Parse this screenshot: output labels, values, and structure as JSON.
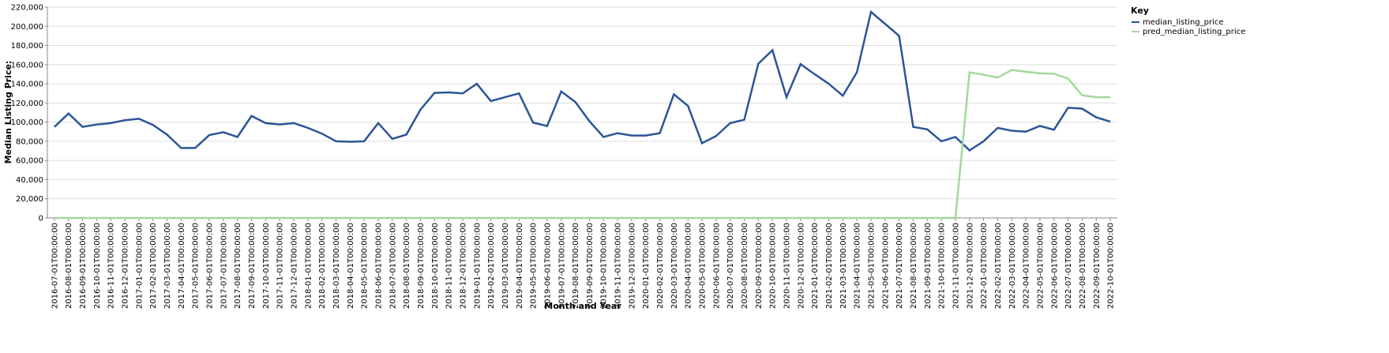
{
  "chart_data": {
    "type": "line",
    "x_label": "Month and Year",
    "y_label": "Median Listing Price:",
    "legend_title": "Key",
    "legend": "right",
    "grid": true,
    "categories": [
      "2016-07-01T00:00:00",
      "2016-08-01T00:00:00",
      "2016-09-01T00:00:00",
      "2016-10-01T00:00:00",
      "2016-11-01T00:00:00",
      "2016-12-01T00:00:00",
      "2017-01-01T00:00:00",
      "2017-02-01T00:00:00",
      "2017-03-01T00:00:00",
      "2017-04-01T00:00:00",
      "2017-05-01T00:00:00",
      "2017-06-01T00:00:00",
      "2017-07-01T00:00:00",
      "2017-08-01T00:00:00",
      "2017-09-01T00:00:00",
      "2017-10-01T00:00:00",
      "2017-11-01T00:00:00",
      "2017-12-01T00:00:00",
      "2018-01-01T00:00:00",
      "2018-02-01T00:00:00",
      "2018-03-01T00:00:00",
      "2018-04-01T00:00:00",
      "2018-05-01T00:00:00",
      "2018-06-01T00:00:00",
      "2018-07-01T00:00:00",
      "2018-08-01T00:00:00",
      "2018-09-01T00:00:00",
      "2018-10-01T00:00:00",
      "2018-11-01T00:00:00",
      "2018-12-01T00:00:00",
      "2019-01-01T00:00:00",
      "2019-02-01T00:00:00",
      "2019-03-01T00:00:00",
      "2019-04-01T00:00:00",
      "2019-05-01T00:00:00",
      "2019-06-01T00:00:00",
      "2019-07-01T00:00:00",
      "2019-08-01T00:00:00",
      "2019-09-01T00:00:00",
      "2019-10-01T00:00:00",
      "2019-11-01T00:00:00",
      "2019-12-01T00:00:00",
      "2020-01-01T00:00:00",
      "2020-02-01T00:00:00",
      "2020-03-01T00:00:00",
      "2020-04-01T00:00:00",
      "2020-05-01T00:00:00",
      "2020-06-01T00:00:00",
      "2020-07-01T00:00:00",
      "2020-08-01T00:00:00",
      "2020-09-01T00:00:00",
      "2020-10-01T00:00:00",
      "2020-11-01T00:00:00",
      "2020-12-01T00:00:00",
      "2021-01-01T00:00:00",
      "2021-02-01T00:00:00",
      "2021-03-01T00:00:00",
      "2021-04-01T00:00:00",
      "2021-05-01T00:00:00",
      "2021-06-01T00:00:00",
      "2021-07-01T00:00:00",
      "2021-08-01T00:00:00",
      "2021-09-01T00:00:00",
      "2021-10-01T00:00:00",
      "2021-11-01T00:00:00",
      "2021-12-01T00:00:00",
      "2022-01-01T00:00:00",
      "2022-02-01T00:00:00",
      "2022-03-01T00:00:00",
      "2022-04-01T00:00:00",
      "2022-05-01T00:00:00",
      "2022-06-01T00:00:00",
      "2022-07-01T00:00:00",
      "2022-08-01T00:00:00",
      "2022-09-01T00:00:00",
      "2022-10-01T00:00:00"
    ],
    "series": [
      {
        "name": "median_listing_price",
        "color": "#2c5597",
        "values": [
          95000,
          109000,
          95000,
          97500,
          99000,
          102000,
          103500,
          97000,
          87000,
          73000,
          73000,
          86500,
          89500,
          84500,
          106500,
          99000,
          97500,
          99000,
          94000,
          88000,
          80000,
          79500,
          80000,
          99000,
          82500,
          87000,
          113000,
          130500,
          131000,
          130000,
          140000,
          122000,
          126000,
          130000,
          99500,
          96000,
          132000,
          121000,
          101000,
          84500,
          88500,
          86000,
          86000,
          88500,
          129000,
          117000,
          78000,
          85500,
          99000,
          102500,
          161000,
          175000,
          126000,
          160500,
          150000,
          140000,
          127500,
          152000,
          215000,
          202500,
          190000,
          95000,
          92500,
          80000,
          84500,
          70500,
          80000,
          94000,
          91000,
          90000,
          96000,
          92000,
          115000,
          114000,
          105000,
          100500
        ]
      },
      {
        "name": "pred_median_listing_price",
        "color": "#a1d99b",
        "values": [
          0,
          0,
          0,
          0,
          0,
          0,
          0,
          0,
          0,
          0,
          0,
          0,
          0,
          0,
          0,
          0,
          0,
          0,
          0,
          0,
          0,
          0,
          0,
          0,
          0,
          0,
          0,
          0,
          0,
          0,
          0,
          0,
          0,
          0,
          0,
          0,
          0,
          0,
          0,
          0,
          0,
          0,
          0,
          0,
          0,
          0,
          0,
          0,
          0,
          0,
          0,
          0,
          0,
          0,
          0,
          0,
          0,
          0,
          0,
          0,
          0,
          0,
          0,
          0,
          0,
          152000,
          149500,
          146500,
          154500,
          152500,
          151000,
          150500,
          145500,
          128000,
          126000,
          126000
        ]
      }
    ],
    "ylim": [
      0,
      220000
    ],
    "yticks": [
      0,
      {
        "value": 20000,
        "label": "20,000"
      },
      {
        "value": 40000,
        "label": "40,000"
      },
      {
        "value": 60000,
        "label": "60,000"
      },
      {
        "value": 80000,
        "label": "80,000"
      },
      {
        "value": 100000,
        "label": "100,000"
      },
      {
        "value": 120000,
        "label": "120,000"
      },
      {
        "value": 140000,
        "label": "140,000"
      },
      {
        "value": 160000,
        "label": "160,000"
      },
      {
        "value": 180000,
        "label": "180,000"
      },
      {
        "value": 200000,
        "label": "200,000"
      },
      {
        "value": 220000,
        "label": "220,000"
      }
    ]
  }
}
